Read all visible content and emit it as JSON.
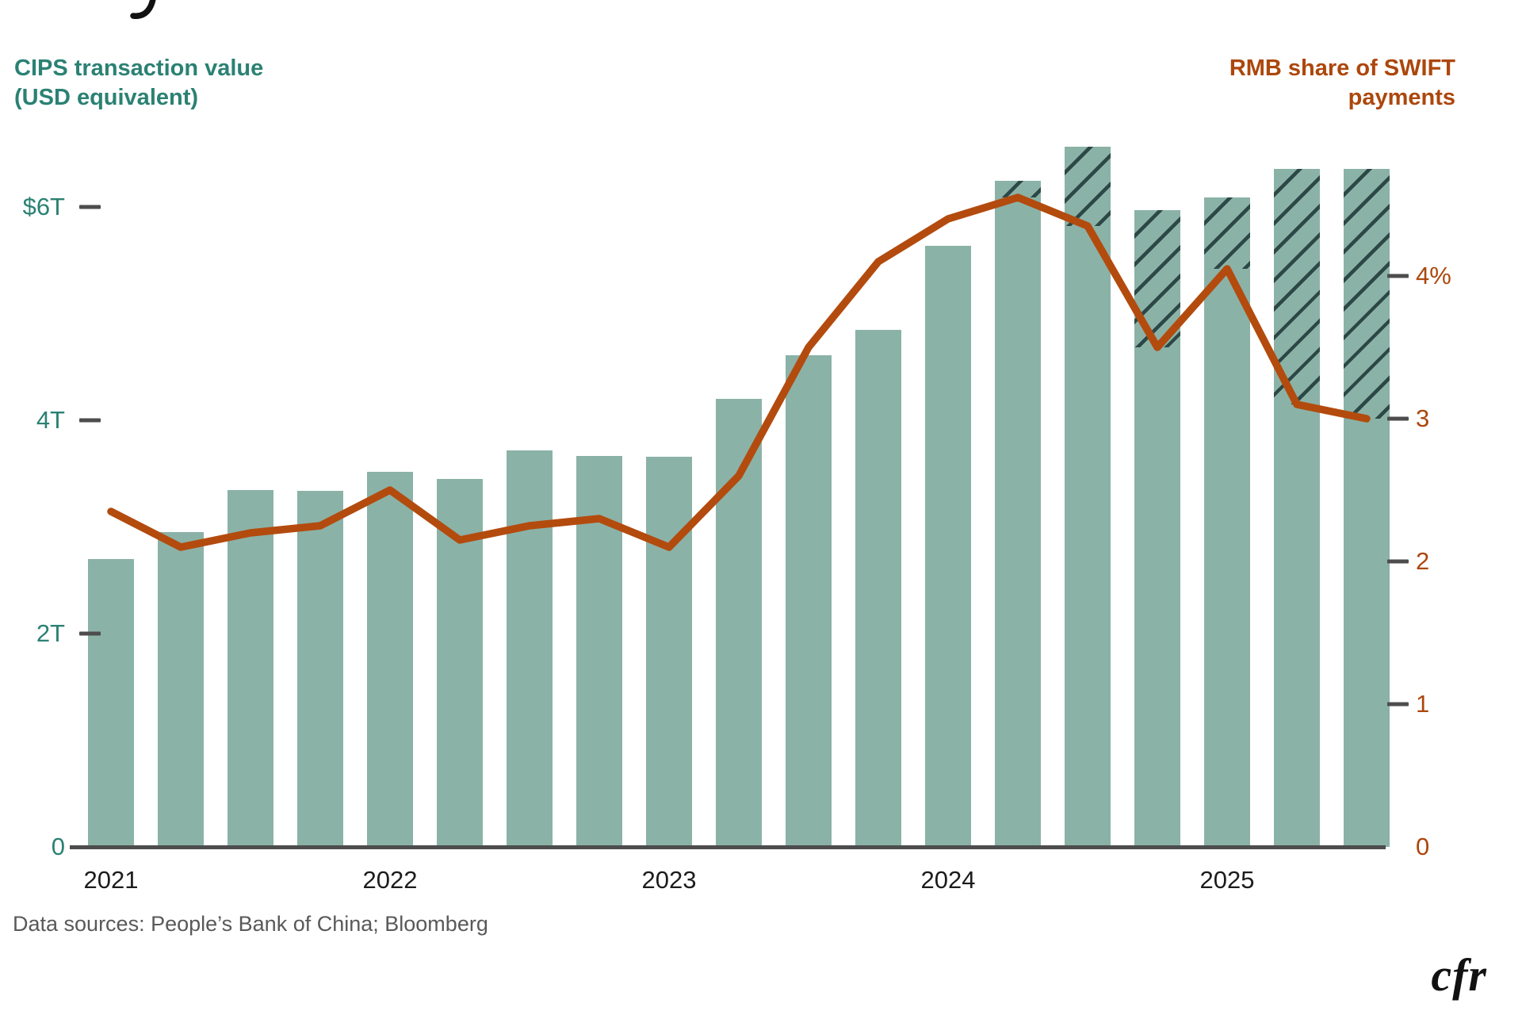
{
  "header": {
    "cropped_title_fragment": "y",
    "left_title_line1": "CIPS transaction value",
    "left_title_line2": "(USD equivalent)",
    "right_title_line1": "RMB share of SWIFT",
    "right_title_line2": "payments"
  },
  "footer": {
    "source": "Data sources: People’s Bank of China; Bloomberg",
    "logo": "cfr"
  },
  "colors": {
    "bar_fill": "#8BB2A7",
    "hatch_stroke": "#2C4846",
    "line": "#B34B0E",
    "teal_text": "#2B8173",
    "orange_text": "#AC470C",
    "axis_gray": "#4D4D4D"
  },
  "chart_data": {
    "type": "bar+line",
    "title_left": "CIPS transaction value (USD equivalent)",
    "title_right": "RMB share of SWIFT payments",
    "categories": [
      "2021 Q1",
      "2021 Q2",
      "2021 Q3",
      "2021 Q4",
      "2022 Q1",
      "2022 Q2",
      "2022 Q3",
      "2022 Q4",
      "2023 Q1",
      "2023 Q2",
      "2023 Q3",
      "2023 Q4",
      "2024 Q1",
      "2024 Q2",
      "2024 Q3",
      "2024 Q4",
      "2025 Q1",
      "2025 Q2",
      "2025 Q3"
    ],
    "series": [
      {
        "name": "CIPS transaction value (USD equivalent)",
        "type": "bar",
        "unit": "USD trillions",
        "values": [
          2.7,
          2.95,
          3.35,
          3.34,
          3.52,
          3.45,
          3.72,
          3.67,
          3.66,
          4.2,
          4.61,
          4.85,
          5.64,
          6.25,
          6.57,
          5.97,
          6.09,
          6.36,
          6.36
        ],
        "hatched": [
          false,
          false,
          false,
          false,
          false,
          false,
          false,
          false,
          false,
          false,
          false,
          false,
          false,
          true,
          true,
          true,
          true,
          true,
          true
        ]
      },
      {
        "name": "RMB share of SWIFT payments",
        "type": "line",
        "unit": "%",
        "values": [
          2.35,
          2.1,
          2.2,
          2.25,
          2.5,
          2.15,
          2.25,
          2.3,
          2.1,
          2.6,
          3.5,
          4.1,
          4.4,
          4.55,
          4.35,
          3.5,
          4.05,
          3.1,
          3.0
        ]
      }
    ],
    "left_axis": {
      "side": "left",
      "ticks": [
        {
          "label": "$6T",
          "value": 6
        },
        {
          "label": "4T",
          "value": 4
        },
        {
          "label": "2T",
          "value": 2
        },
        {
          "label": "0",
          "value": 0
        }
      ],
      "range": [
        0,
        7
      ]
    },
    "right_axis": {
      "side": "right",
      "ticks": [
        {
          "label": "4%",
          "value": 4
        },
        {
          "label": "3",
          "value": 3
        },
        {
          "label": "2",
          "value": 2
        },
        {
          "label": "1",
          "value": 1
        },
        {
          "label": "0",
          "value": 0
        }
      ],
      "range": [
        0,
        5.2
      ]
    },
    "x_axis": {
      "ticks": [
        {
          "label": "2021",
          "quarter_index": 0
        },
        {
          "label": "2022",
          "quarter_index": 4
        },
        {
          "label": "2023",
          "quarter_index": 8
        },
        {
          "label": "2024",
          "quarter_index": 12
        },
        {
          "label": "2025",
          "quarter_index": 16
        }
      ]
    },
    "grid": false,
    "legend_position": "titles-as-legend"
  }
}
